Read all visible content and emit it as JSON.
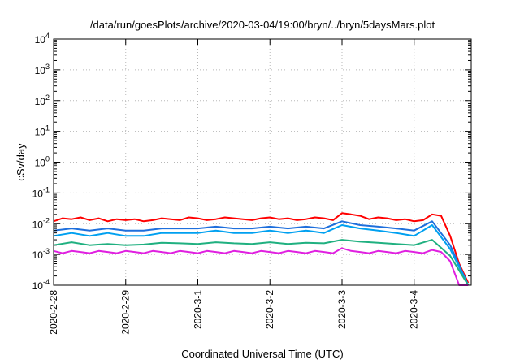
{
  "chart_data": {
    "type": "line",
    "title": "/data/run/goesPlots/archive/2020-03-04/19:00/bryn/../bryn/5daysMars.plot",
    "xlabel": "Coordinated Universal Time (UTC)",
    "ylabel": "cSv/day",
    "yscale": "log",
    "ylim": [
      0.0001,
      10000
    ],
    "y_ticks": [
      {
        "value": 0.0001,
        "base": "10",
        "exp": "-4"
      },
      {
        "value": 0.001,
        "base": "10",
        "exp": "-3"
      },
      {
        "value": 0.01,
        "base": "10",
        "exp": "-2"
      },
      {
        "value": 0.1,
        "base": "10",
        "exp": "-1"
      },
      {
        "value": 1,
        "base": "10",
        "exp": "0"
      },
      {
        "value": 10,
        "base": "10",
        "exp": "1"
      },
      {
        "value": 100,
        "base": "10",
        "exp": "2"
      },
      {
        "value": 1000,
        "base": "10",
        "exp": "3"
      },
      {
        "value": 10000,
        "base": "10",
        "exp": "4"
      }
    ],
    "x_ticks": [
      "2020-2-28",
      "2020-2-29",
      "2020-3-1",
      "2020-3-2",
      "2020-3-3",
      "2020-3-4"
    ],
    "xlim": [
      "2020-02-28 00:00",
      "2020-03-04 19:00"
    ],
    "grid": true,
    "legend": "none",
    "series": [
      {
        "color": "#ff0000",
        "x": [
          "2020-02-28 00:00",
          "2020-02-28 03:00",
          "2020-02-28 06:00",
          "2020-02-28 09:00",
          "2020-02-28 12:00",
          "2020-02-28 15:00",
          "2020-02-28 18:00",
          "2020-02-28 21:00",
          "2020-02-29 00:00",
          "2020-02-29 03:00",
          "2020-02-29 06:00",
          "2020-02-29 09:00",
          "2020-02-29 12:00",
          "2020-02-29 15:00",
          "2020-02-29 18:00",
          "2020-02-29 21:00",
          "2020-03-01 00:00",
          "2020-03-01 03:00",
          "2020-03-01 06:00",
          "2020-03-01 09:00",
          "2020-03-01 12:00",
          "2020-03-01 15:00",
          "2020-03-01 18:00",
          "2020-03-01 21:00",
          "2020-03-02 00:00",
          "2020-03-02 03:00",
          "2020-03-02 06:00",
          "2020-03-02 09:00",
          "2020-03-02 12:00",
          "2020-03-02 15:00",
          "2020-03-02 18:00",
          "2020-03-02 21:00",
          "2020-03-03 00:00",
          "2020-03-03 03:00",
          "2020-03-03 06:00",
          "2020-03-03 09:00",
          "2020-03-03 12:00",
          "2020-03-03 15:00",
          "2020-03-03 18:00",
          "2020-03-03 21:00",
          "2020-03-04 00:00",
          "2020-03-04 03:00",
          "2020-03-04 06:00",
          "2020-03-04 09:00",
          "2020-03-04 12:00",
          "2020-03-04 15:00",
          "2020-03-04 18:00"
        ],
        "values": [
          0.012,
          0.015,
          0.014,
          0.016,
          0.013,
          0.015,
          0.012,
          0.014,
          0.013,
          0.014,
          0.012,
          0.013,
          0.015,
          0.014,
          0.013,
          0.016,
          0.015,
          0.013,
          0.014,
          0.016,
          0.015,
          0.014,
          0.013,
          0.015,
          0.016,
          0.014,
          0.015,
          0.013,
          0.014,
          0.016,
          0.015,
          0.013,
          0.022,
          0.02,
          0.018,
          0.014,
          0.016,
          0.015,
          0.013,
          0.014,
          0.012,
          0.013,
          0.02,
          0.018,
          0.004,
          0.0005,
          0.00012
        ]
      },
      {
        "color": "#1e6fdc",
        "x": [
          "2020-02-28 00:00",
          "2020-02-28 06:00",
          "2020-02-28 12:00",
          "2020-02-28 18:00",
          "2020-02-29 00:00",
          "2020-02-29 06:00",
          "2020-02-29 12:00",
          "2020-02-29 18:00",
          "2020-03-01 00:00",
          "2020-03-01 06:00",
          "2020-03-01 12:00",
          "2020-03-01 18:00",
          "2020-03-02 00:00",
          "2020-03-02 06:00",
          "2020-03-02 12:00",
          "2020-03-02 18:00",
          "2020-03-03 00:00",
          "2020-03-03 06:00",
          "2020-03-03 12:00",
          "2020-03-03 18:00",
          "2020-03-04 00:00",
          "2020-03-04 06:00",
          "2020-03-04 12:00",
          "2020-03-04 18:00"
        ],
        "values": [
          0.006,
          0.007,
          0.006,
          0.007,
          0.006,
          0.006,
          0.007,
          0.007,
          0.007,
          0.008,
          0.007,
          0.007,
          0.008,
          0.007,
          0.008,
          0.007,
          0.012,
          0.009,
          0.008,
          0.007,
          0.006,
          0.012,
          0.002,
          0.0001
        ]
      },
      {
        "color": "#00a0f0",
        "x": [
          "2020-02-28 00:00",
          "2020-02-28 06:00",
          "2020-02-28 12:00",
          "2020-02-28 18:00",
          "2020-02-29 00:00",
          "2020-02-29 06:00",
          "2020-02-29 12:00",
          "2020-02-29 18:00",
          "2020-03-01 00:00",
          "2020-03-01 06:00",
          "2020-03-01 12:00",
          "2020-03-01 18:00",
          "2020-03-02 00:00",
          "2020-03-02 06:00",
          "2020-03-02 12:00",
          "2020-03-02 18:00",
          "2020-03-03 00:00",
          "2020-03-03 06:00",
          "2020-03-03 12:00",
          "2020-03-03 18:00",
          "2020-03-04 00:00",
          "2020-03-04 06:00",
          "2020-03-04 12:00",
          "2020-03-04 18:00"
        ],
        "values": [
          0.004,
          0.005,
          0.004,
          0.005,
          0.004,
          0.004,
          0.005,
          0.005,
          0.005,
          0.006,
          0.005,
          0.005,
          0.006,
          0.005,
          0.006,
          0.005,
          0.009,
          0.007,
          0.006,
          0.005,
          0.004,
          0.009,
          0.0015,
          0.0001
        ]
      },
      {
        "color": "#20b080",
        "x": [
          "2020-02-28 00:00",
          "2020-02-28 06:00",
          "2020-02-28 12:00",
          "2020-02-28 18:00",
          "2020-02-29 00:00",
          "2020-02-29 06:00",
          "2020-02-29 12:00",
          "2020-02-29 18:00",
          "2020-03-01 00:00",
          "2020-03-01 06:00",
          "2020-03-01 12:00",
          "2020-03-01 18:00",
          "2020-03-02 00:00",
          "2020-03-02 06:00",
          "2020-03-02 12:00",
          "2020-03-02 18:00",
          "2020-03-03 00:00",
          "2020-03-03 06:00",
          "2020-03-03 12:00",
          "2020-03-03 18:00",
          "2020-03-04 00:00",
          "2020-03-04 06:00",
          "2020-03-04 12:00",
          "2020-03-04 18:00"
        ],
        "values": [
          0.002,
          0.0025,
          0.002,
          0.0022,
          0.002,
          0.0021,
          0.0024,
          0.0023,
          0.0022,
          0.0025,
          0.0023,
          0.0022,
          0.0025,
          0.0022,
          0.0024,
          0.0023,
          0.003,
          0.0026,
          0.0024,
          0.0022,
          0.002,
          0.003,
          0.0009,
          0.0001
        ]
      },
      {
        "color": "#e020e0",
        "x": [
          "2020-02-28 00:00",
          "2020-02-28 03:00",
          "2020-02-28 06:00",
          "2020-02-28 09:00",
          "2020-02-28 12:00",
          "2020-02-28 15:00",
          "2020-02-28 18:00",
          "2020-02-28 21:00",
          "2020-02-29 00:00",
          "2020-02-29 03:00",
          "2020-02-29 06:00",
          "2020-02-29 09:00",
          "2020-02-29 12:00",
          "2020-02-29 15:00",
          "2020-02-29 18:00",
          "2020-02-29 21:00",
          "2020-03-01 00:00",
          "2020-03-01 03:00",
          "2020-03-01 06:00",
          "2020-03-01 09:00",
          "2020-03-01 12:00",
          "2020-03-01 15:00",
          "2020-03-01 18:00",
          "2020-03-01 21:00",
          "2020-03-02 00:00",
          "2020-03-02 03:00",
          "2020-03-02 06:00",
          "2020-03-02 09:00",
          "2020-03-02 12:00",
          "2020-03-02 15:00",
          "2020-03-02 18:00",
          "2020-03-02 21:00",
          "2020-03-03 00:00",
          "2020-03-03 03:00",
          "2020-03-03 06:00",
          "2020-03-03 09:00",
          "2020-03-03 12:00",
          "2020-03-03 15:00",
          "2020-03-03 18:00",
          "2020-03-03 21:00",
          "2020-03-04 00:00",
          "2020-03-04 03:00",
          "2020-03-04 06:00",
          "2020-03-04 09:00",
          "2020-03-04 12:00",
          "2020-03-04 15:00",
          "2020-03-04 18:00"
        ],
        "values": [
          0.0013,
          0.0011,
          0.0013,
          0.0012,
          0.0011,
          0.0013,
          0.0012,
          0.0011,
          0.0013,
          0.0012,
          0.0011,
          0.0013,
          0.0012,
          0.0011,
          0.0013,
          0.0012,
          0.0011,
          0.0013,
          0.0012,
          0.0011,
          0.0013,
          0.0012,
          0.0011,
          0.0013,
          0.0012,
          0.0011,
          0.0013,
          0.0012,
          0.0011,
          0.0013,
          0.0012,
          0.0011,
          0.0016,
          0.0013,
          0.0012,
          0.0011,
          0.0013,
          0.0012,
          0.0011,
          0.0013,
          0.0012,
          0.0011,
          0.0014,
          0.0012,
          0.0006,
          0.0001,
          0.0001
        ]
      }
    ]
  }
}
